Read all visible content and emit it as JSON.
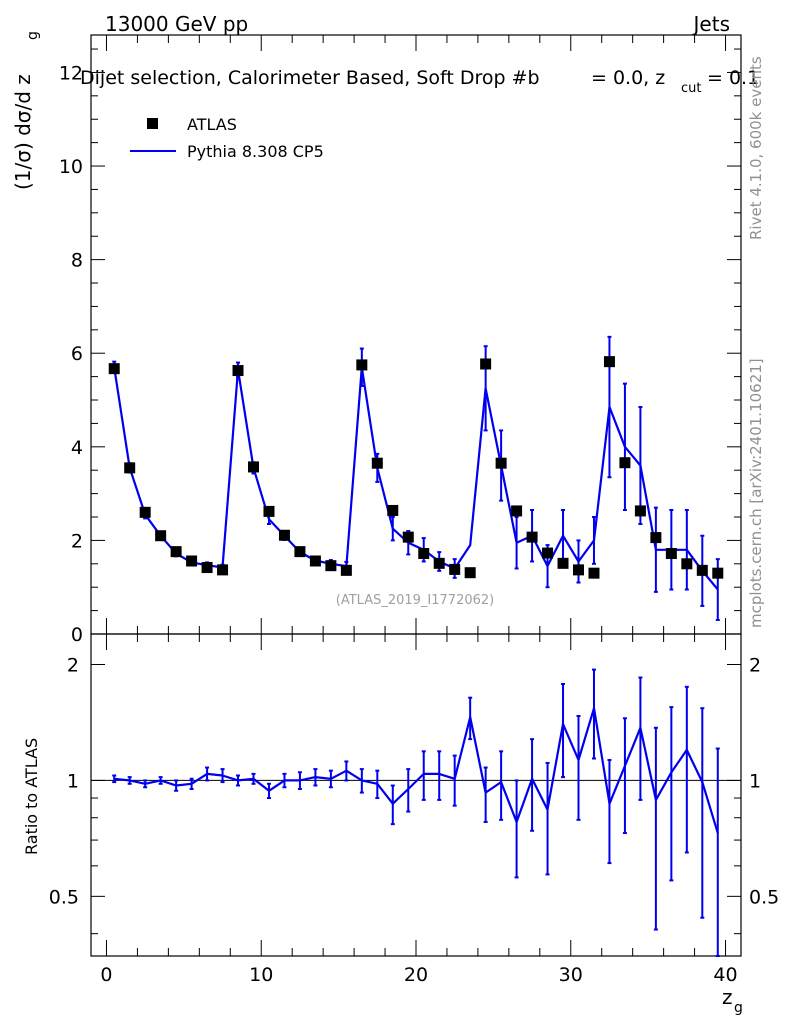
{
  "header": {
    "energy_label": "13000 GeV pp",
    "category_label": "Jets",
    "plot_title": "Dijet selection, Calorimeter Based, Soft Drop #b",
    "plot_title_params": "= 0.0, z",
    "plot_title_sub": "cut",
    "plot_title_end": "= 0.1"
  },
  "side_text": {
    "rivet": "Rivet 4.1.0,  600k events",
    "mcplots": "mcplots.cern.ch [arXiv:2401.10621]"
  },
  "watermark": "(ATLAS_2019_I1772062)",
  "colors": {
    "data": "#000000",
    "mc": "#0000ee",
    "axis": "#000000"
  },
  "chart_data": [
    {
      "type": "line",
      "panel": "main",
      "ylabel": "(1/σ) dσ/d z",
      "ylabel_sub": "g",
      "xlabel": "z",
      "xlabel_sub": "g",
      "xlim": [
        -1,
        41
      ],
      "ylim": [
        0,
        12.8
      ],
      "x_ticks": [
        "0",
        "10",
        "20",
        "30",
        "40"
      ],
      "y_ticks": [
        "0",
        "2",
        "4",
        "6",
        "8",
        "10",
        "12"
      ],
      "legend": {
        "position": "top-left",
        "data_label": "ATLAS",
        "mc_label": "Pythia 8.308 CP5"
      },
      "x": [
        0.5,
        1.5,
        2.5,
        3.5,
        4.5,
        5.5,
        6.5,
        7.5,
        8.5,
        9.5,
        10.5,
        11.5,
        12.5,
        13.5,
        14.5,
        15.5,
        16.5,
        17.5,
        18.5,
        19.5,
        20.5,
        21.5,
        22.5,
        23.5,
        24.5,
        25.5,
        26.5,
        27.5,
        28.5,
        29.5,
        30.5,
        31.5,
        32.5,
        33.5,
        34.5,
        35.5,
        36.5,
        37.5,
        38.5,
        39.5
      ],
      "series": [
        {
          "name": "ATLAS",
          "style": "markers",
          "values": [
            5.67,
            3.55,
            2.6,
            2.1,
            1.76,
            1.56,
            1.42,
            1.37,
            5.63,
            3.57,
            2.62,
            2.11,
            1.76,
            1.56,
            1.46,
            1.36,
            5.75,
            3.65,
            2.64,
            2.07,
            1.72,
            1.51,
            1.38,
            1.31,
            5.77,
            3.65,
            2.63,
            2.07,
            1.73,
            1.51,
            1.37,
            1.3,
            5.82,
            3.66,
            2.63,
            2.06,
            1.72,
            1.5,
            1.36,
            1.3
          ]
        },
        {
          "name": "Pythia 8.308 CP5",
          "style": "line",
          "values": [
            5.7,
            3.55,
            2.55,
            2.1,
            1.72,
            1.53,
            1.47,
            1.42,
            5.65,
            3.55,
            2.45,
            2.1,
            1.75,
            1.57,
            1.5,
            1.45,
            5.7,
            3.55,
            2.25,
            1.95,
            1.8,
            1.55,
            1.4,
            1.9,
            5.25,
            3.6,
            1.95,
            2.1,
            1.45,
            2.1,
            1.55,
            2.0,
            4.85,
            4.0,
            3.6,
            1.8,
            1.8,
            1.8,
            1.35,
            0.95
          ],
          "errors": [
            0.12,
            0.1,
            0.08,
            0.07,
            0.06,
            0.06,
            0.06,
            0.06,
            0.15,
            0.12,
            0.1,
            0.09,
            0.08,
            0.08,
            0.08,
            0.09,
            0.4,
            0.3,
            0.25,
            0.25,
            0.25,
            0.2,
            0.2,
            0.0,
            0.9,
            0.75,
            0.55,
            0.55,
            0.45,
            0.55,
            0.45,
            0.5,
            1.5,
            1.35,
            1.25,
            0.9,
            0.85,
            0.85,
            0.75,
            0.65
          ]
        }
      ]
    },
    {
      "type": "line",
      "panel": "ratio",
      "ylabel": "Ratio to ATLAS",
      "scale": "log",
      "xlim": [
        -1,
        41
      ],
      "ylim": [
        0.35,
        2.4
      ],
      "y_ticks": [
        "0.5",
        "1",
        "2"
      ],
      "x_ticks": [
        "0",
        "10",
        "20",
        "30",
        "40"
      ],
      "x": [
        0.5,
        1.5,
        2.5,
        3.5,
        4.5,
        5.5,
        6.5,
        7.5,
        8.5,
        9.5,
        10.5,
        11.5,
        12.5,
        13.5,
        14.5,
        15.5,
        16.5,
        17.5,
        18.5,
        19.5,
        20.5,
        21.5,
        22.5,
        23.5,
        24.5,
        25.5,
        26.5,
        27.5,
        28.5,
        29.5,
        30.5,
        31.5,
        32.5,
        33.5,
        34.5,
        35.5,
        36.5,
        37.5,
        38.5,
        39.5
      ],
      "series": [
        {
          "name": "Pythia 8.308 CP5 / ATLAS",
          "values": [
            1.01,
            1.0,
            0.98,
            1.0,
            0.97,
            0.98,
            1.04,
            1.03,
            1.0,
            1.01,
            0.94,
            1.0,
            1.0,
            1.02,
            1.01,
            1.06,
            1.0,
            0.98,
            0.87,
            0.95,
            1.04,
            1.04,
            1.01,
            1.46,
            0.93,
            0.99,
            0.78,
            1.01,
            0.84,
            1.4,
            1.13,
            1.54,
            0.87,
            1.09,
            1.37,
            0.89,
            1.05,
            1.2,
            0.99,
            0.73
          ],
          "errors": [
            0.02,
            0.02,
            0.02,
            0.02,
            0.03,
            0.03,
            0.04,
            0.04,
            0.03,
            0.03,
            0.04,
            0.04,
            0.05,
            0.05,
            0.05,
            0.06,
            0.07,
            0.08,
            0.1,
            0.12,
            0.15,
            0.15,
            0.15,
            0.18,
            0.15,
            0.2,
            0.22,
            0.27,
            0.27,
            0.38,
            0.34,
            0.4,
            0.26,
            0.36,
            0.48,
            0.48,
            0.5,
            0.55,
            0.55,
            0.48
          ]
        }
      ]
    }
  ]
}
